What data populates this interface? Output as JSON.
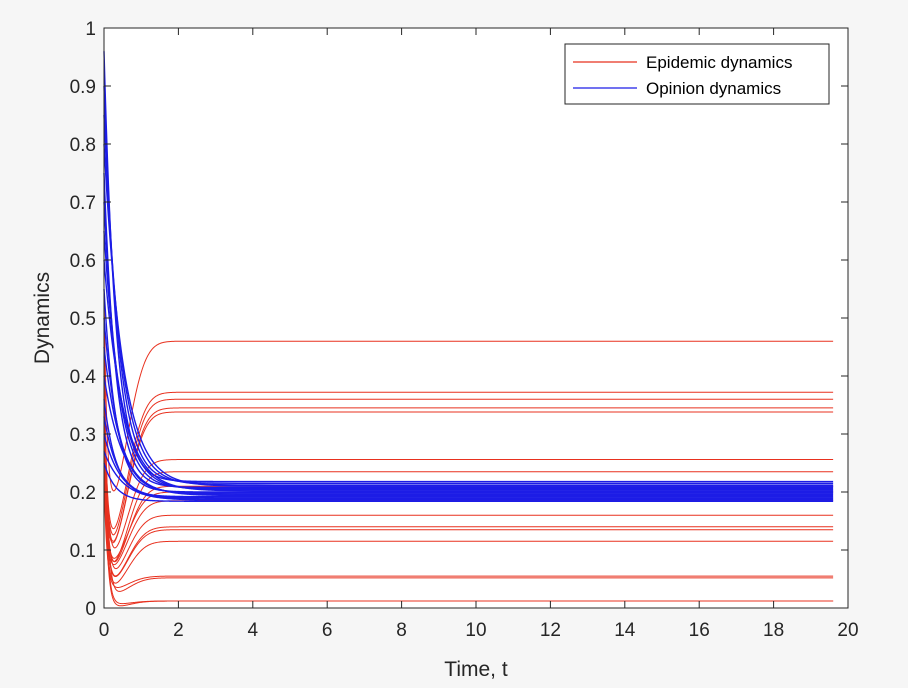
{
  "chart_data": {
    "type": "line",
    "title": "",
    "xlabel": "Time, t",
    "ylabel": "Dynamics",
    "xlim": [
      0,
      20
    ],
    "ylim": [
      0,
      1
    ],
    "xticks": [
      "0",
      "2",
      "4",
      "6",
      "8",
      "10",
      "12",
      "14",
      "16",
      "18",
      "20"
    ],
    "yticks": [
      "0",
      "0.1",
      "0.2",
      "0.3",
      "0.4",
      "0.5",
      "0.6",
      "0.7",
      "0.8",
      "0.9",
      "1"
    ],
    "grid": false,
    "legend_position": "top-right",
    "legend": [
      {
        "label": "Epidemic dynamics",
        "color": "#e8311f"
      },
      {
        "label": "Opinion dynamics",
        "color": "#1c1ce6"
      }
    ],
    "series": [
      {
        "group": "Epidemic dynamics",
        "color": "#e8311f",
        "initial_values": [
          0.55,
          0.4,
          0.38,
          0.35,
          0.3,
          0.45,
          0.32,
          0.36,
          0.28,
          0.25,
          0.42,
          0.33,
          0.3,
          0.27,
          0.22,
          0.5,
          0.34,
          0.31
        ],
        "min_values": [
          0.17,
          0.11,
          0.1,
          0.09,
          0.09,
          0.08,
          0.06,
          0.06,
          0.07,
          0.06,
          0.05,
          0.04,
          0.04,
          0.03,
          0.03,
          0.02,
          0.005,
          0.0
        ],
        "steady_state_values": [
          0.46,
          0.372,
          0.36,
          0.345,
          0.338,
          0.256,
          0.235,
          0.21,
          0.2,
          0.185,
          0.16,
          0.14,
          0.135,
          0.115,
          0.055,
          0.052,
          0.012,
          0.012
        ]
      },
      {
        "group": "Opinion dynamics",
        "color": "#1c1ce6",
        "initial_values": [
          0.96,
          0.9,
          0.85,
          0.8,
          0.75,
          0.7,
          0.65,
          0.6,
          0.55,
          0.5,
          0.45,
          0.4,
          0.36,
          0.33,
          0.3,
          0.27,
          0.25
        ],
        "steady_state_values": [
          0.218,
          0.215,
          0.212,
          0.21,
          0.208,
          0.206,
          0.204,
          0.202,
          0.2,
          0.198,
          0.196,
          0.194,
          0.192,
          0.19,
          0.188,
          0.186,
          0.184
        ]
      }
    ]
  }
}
